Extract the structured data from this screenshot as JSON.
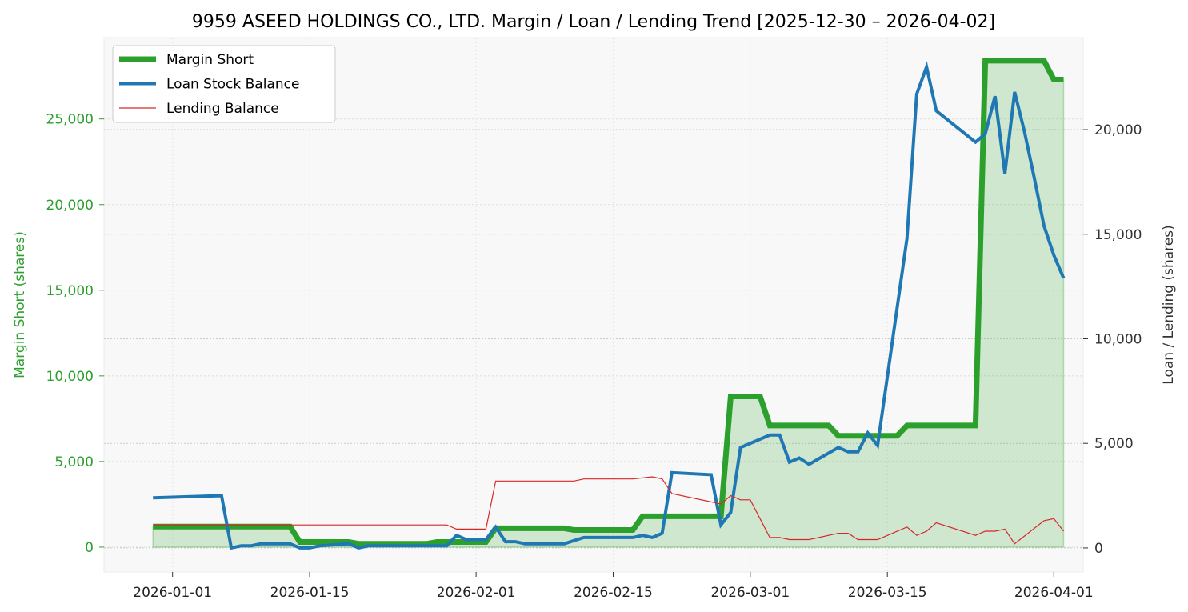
{
  "chart_data": {
    "type": "line",
    "title": "9959 ASEED HOLDINGS CO., LTD. Margin / Loan / Lending Trend [2025-12-30 – 2026-04-02]",
    "xlabel": "",
    "ylabel_left": "Margin Short (shares)",
    "ylabel_right": "Loan / Lending (shares)",
    "xlim": [
      "2025-12-25",
      "2026-04-04"
    ],
    "ylim_left": [
      -1450,
      29750
    ],
    "ylim_right": [
      -1150,
      24400
    ],
    "x_ticks": [
      "2026-01-01",
      "2026-01-15",
      "2026-02-01",
      "2026-02-15",
      "2026-03-01",
      "2026-03-15",
      "2026-04-01"
    ],
    "y_left_ticks": [
      0,
      5000,
      10000,
      15000,
      20000,
      25000
    ],
    "y_right_ticks": [
      0,
      5000,
      10000,
      15000,
      20000
    ],
    "grid": true,
    "legend_position": "top-left",
    "colors": {
      "margin": "#2ca02c",
      "loan": "#1f77b4",
      "lending": "#d62728",
      "fill": "#2ca02c",
      "left_axis_text": "#2ca02c",
      "right_axis_text": "#333333",
      "plot_bg": "#f8f8f8"
    },
    "series": [
      {
        "name": "Margin Short",
        "axis": "left",
        "style": "thick",
        "points": [
          [
            "2025-12-30",
            1200
          ],
          [
            "2026-01-13",
            1200
          ],
          [
            "2026-01-14",
            300
          ],
          [
            "2026-01-19",
            300
          ],
          [
            "2026-01-20",
            200
          ],
          [
            "2026-01-27",
            200
          ],
          [
            "2026-01-28",
            300
          ],
          [
            "2026-02-02",
            300
          ],
          [
            "2026-02-03",
            1100
          ],
          [
            "2026-02-10",
            1100
          ],
          [
            "2026-02-11",
            1000
          ],
          [
            "2026-02-17",
            1000
          ],
          [
            "2026-02-18",
            1800
          ],
          [
            "2026-02-26",
            1800
          ],
          [
            "2026-02-27",
            8800
          ],
          [
            "2026-03-02",
            8800
          ],
          [
            "2026-03-03",
            7100
          ],
          [
            "2026-03-09",
            7100
          ],
          [
            "2026-03-10",
            6500
          ],
          [
            "2026-03-16",
            6500
          ],
          [
            "2026-03-17",
            7100
          ],
          [
            "2026-03-24",
            7100
          ],
          [
            "2026-03-25",
            28400
          ],
          [
            "2026-03-31",
            28400
          ],
          [
            "2026-04-01",
            27300
          ],
          [
            "2026-04-02",
            27300
          ]
        ]
      },
      {
        "name": "Loan Stock Balance",
        "axis": "right",
        "style": "medium",
        "points": [
          [
            "2025-12-30",
            2400
          ],
          [
            "2026-01-06",
            2500
          ],
          [
            "2026-01-07",
            0
          ],
          [
            "2026-01-08",
            100
          ],
          [
            "2026-01-09",
            100
          ],
          [
            "2026-01-10",
            200
          ],
          [
            "2026-01-13",
            200
          ],
          [
            "2026-01-14",
            0
          ],
          [
            "2026-01-15",
            0
          ],
          [
            "2026-01-16",
            100
          ],
          [
            "2026-01-19",
            200
          ],
          [
            "2026-01-20",
            0
          ],
          [
            "2026-01-21",
            100
          ],
          [
            "2026-01-29",
            100
          ],
          [
            "2026-01-30",
            600
          ],
          [
            "2026-01-31",
            400
          ],
          [
            "2026-02-02",
            400
          ],
          [
            "2026-02-03",
            1000
          ],
          [
            "2026-02-04",
            300
          ],
          [
            "2026-02-05",
            300
          ],
          [
            "2026-02-06",
            200
          ],
          [
            "2026-02-10",
            200
          ],
          [
            "2026-02-12",
            500
          ],
          [
            "2026-02-16",
            500
          ],
          [
            "2026-02-17",
            500
          ],
          [
            "2026-02-18",
            600
          ],
          [
            "2026-02-19",
            500
          ],
          [
            "2026-02-20",
            700
          ],
          [
            "2026-02-21",
            3600
          ],
          [
            "2026-02-25",
            3500
          ],
          [
            "2026-02-26",
            1100
          ],
          [
            "2026-02-27",
            1700
          ],
          [
            "2026-02-28",
            4800
          ],
          [
            "2026-03-03",
            5400
          ],
          [
            "2026-03-04",
            5400
          ],
          [
            "2026-03-05",
            4100
          ],
          [
            "2026-03-06",
            4300
          ],
          [
            "2026-03-07",
            4000
          ],
          [
            "2026-03-10",
            4800
          ],
          [
            "2026-03-11",
            4600
          ],
          [
            "2026-03-12",
            4600
          ],
          [
            "2026-03-13",
            5500
          ],
          [
            "2026-03-14",
            4900
          ],
          [
            "2026-03-17",
            14800
          ],
          [
            "2026-03-18",
            21700
          ],
          [
            "2026-03-19",
            23000
          ],
          [
            "2026-03-20",
            20900
          ],
          [
            "2026-03-24",
            19400
          ],
          [
            "2026-03-25",
            19800
          ],
          [
            "2026-03-26",
            21600
          ],
          [
            "2026-03-27",
            17900
          ],
          [
            "2026-03-28",
            21800
          ],
          [
            "2026-03-29",
            19900
          ],
          [
            "2026-03-30",
            17700
          ],
          [
            "2026-03-31",
            15400
          ],
          [
            "2026-04-01",
            14000
          ],
          [
            "2026-04-02",
            12900
          ]
        ]
      },
      {
        "name": "Lending Balance",
        "axis": "right",
        "style": "thin",
        "points": [
          [
            "2025-12-30",
            1100
          ],
          [
            "2026-01-29",
            1100
          ],
          [
            "2026-01-30",
            900
          ],
          [
            "2026-02-02",
            900
          ],
          [
            "2026-02-03",
            3200
          ],
          [
            "2026-02-11",
            3200
          ],
          [
            "2026-02-12",
            3300
          ],
          [
            "2026-02-17",
            3300
          ],
          [
            "2026-02-19",
            3400
          ],
          [
            "2026-02-20",
            3300
          ],
          [
            "2026-02-21",
            2600
          ],
          [
            "2026-02-26",
            2100
          ],
          [
            "2026-02-27",
            2500
          ],
          [
            "2026-02-28",
            2300
          ],
          [
            "2026-02-29",
            2300
          ],
          [
            "2026-03-03",
            500
          ],
          [
            "2026-03-04",
            500
          ],
          [
            "2026-03-05",
            400
          ],
          [
            "2026-03-07",
            400
          ],
          [
            "2026-03-10",
            700
          ],
          [
            "2026-03-11",
            700
          ],
          [
            "2026-03-12",
            400
          ],
          [
            "2026-03-14",
            400
          ],
          [
            "2026-03-17",
            1000
          ],
          [
            "2026-03-18",
            600
          ],
          [
            "2026-03-19",
            800
          ],
          [
            "2026-03-20",
            1200
          ],
          [
            "2026-03-24",
            600
          ],
          [
            "2026-03-25",
            800
          ],
          [
            "2026-03-26",
            800
          ],
          [
            "2026-03-27",
            900
          ],
          [
            "2026-03-28",
            200
          ],
          [
            "2026-03-31",
            1300
          ],
          [
            "2026-04-01",
            1400
          ],
          [
            "2026-04-02",
            800
          ]
        ]
      }
    ]
  }
}
